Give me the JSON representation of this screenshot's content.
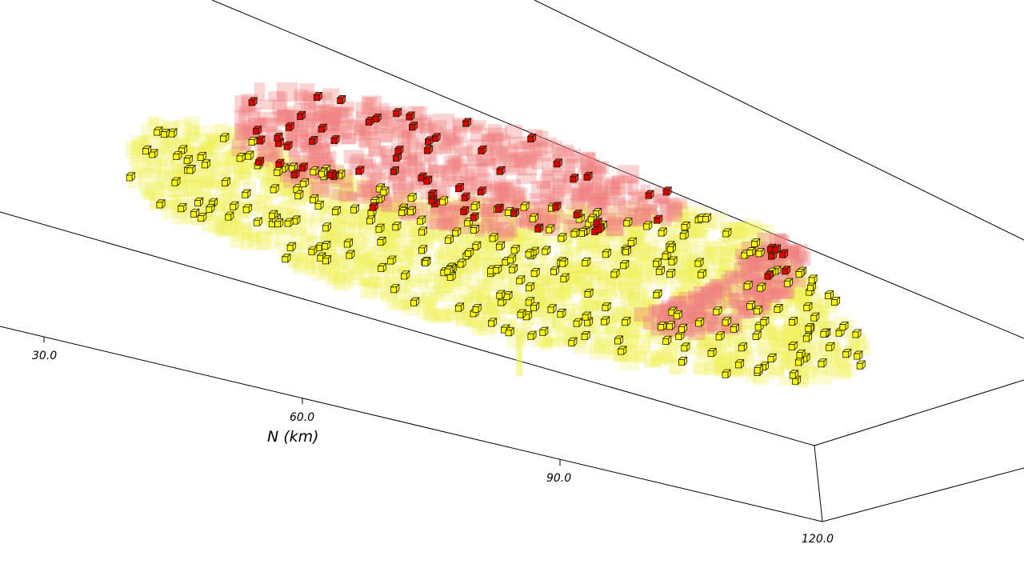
{
  "chart_data": {
    "type": "scatter",
    "view": "3d-voxel",
    "axis": {
      "title": "N (km)",
      "ticks": [
        "30.0",
        "60.0",
        "90.0",
        "120.0"
      ]
    },
    "series": [
      {
        "color": "#ffff00",
        "halo_color": "#f2f25a"
      },
      {
        "color": "#dd0000",
        "halo_color": "#f08080"
      }
    ]
  }
}
